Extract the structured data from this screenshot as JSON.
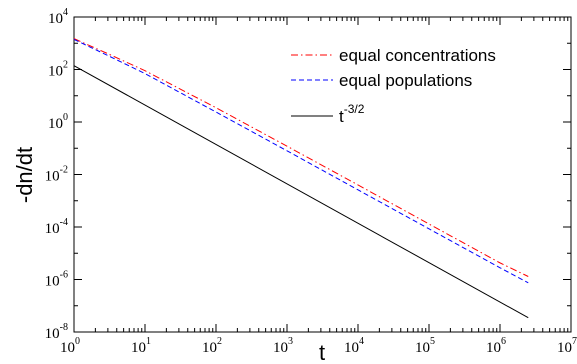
{
  "chart_data": {
    "type": "line",
    "xlabel": "t",
    "ylabel": "-dn/dt",
    "xscale": "log",
    "yscale": "log",
    "xlim": [
      1,
      10000000
    ],
    "ylim": [
      1e-08,
      10000
    ],
    "x_ticks": [
      {
        "base": "10",
        "exp": "0",
        "value": 1
      },
      {
        "base": "10",
        "exp": "1",
        "value": 10
      },
      {
        "base": "10",
        "exp": "2",
        "value": 100
      },
      {
        "base": "10",
        "exp": "3",
        "value": 1000
      },
      {
        "base": "10",
        "exp": "4",
        "value": 10000
      },
      {
        "base": "10",
        "exp": "5",
        "value": 100000
      },
      {
        "base": "10",
        "exp": "6",
        "value": 1000000
      },
      {
        "base": "10",
        "exp": "7",
        "value": 10000000
      }
    ],
    "y_ticks": [
      {
        "base": "10",
        "exp": "-8",
        "value": 1e-08
      },
      {
        "base": "10",
        "exp": "-6",
        "value": 1e-06
      },
      {
        "base": "10",
        "exp": "-4",
        "value": 0.0001
      },
      {
        "base": "10",
        "exp": "-2",
        "value": 0.01
      },
      {
        "base": "10",
        "exp": "0",
        "value": 1
      },
      {
        "base": "10",
        "exp": "2",
        "value": 100
      },
      {
        "base": "10",
        "exp": "4",
        "value": 10000
      }
    ],
    "legend_position": "top-right",
    "grid": false,
    "series": [
      {
        "name": "equal concentrations",
        "color": "#ff0000",
        "dash": "dash-dot",
        "x": [
          1,
          3,
          10,
          100,
          1000,
          10000,
          100000,
          1000000,
          2500000
        ],
        "y": [
          1500,
          400,
          90,
          3.5,
          0.12,
          0.004,
          0.00013,
          4.3e-06,
          1.3e-06
        ]
      },
      {
        "name": "equal populations",
        "color": "#0000ff",
        "dash": "dashed",
        "x": [
          1,
          3,
          10,
          100,
          1000,
          10000,
          100000,
          1000000,
          2500000
        ],
        "y": [
          1400,
          340,
          70,
          2.4,
          0.08,
          0.0026,
          8.5e-05,
          2.8e-06,
          7.5e-07
        ]
      },
      {
        "name": "t",
        "name_exp": "-3/2",
        "color": "#000000",
        "dash": "solid",
        "x": [
          1,
          2500000
        ],
        "y": [
          140,
          3.5e-08
        ]
      }
    ]
  }
}
